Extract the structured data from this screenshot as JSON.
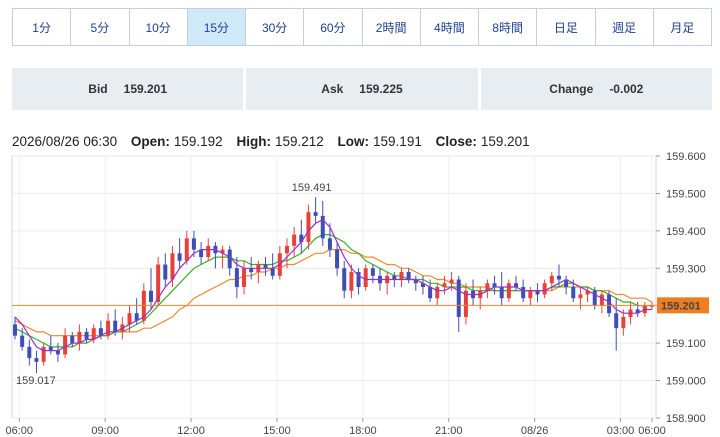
{
  "timeframes": [
    {
      "label": "1分",
      "active": false
    },
    {
      "label": "5分",
      "active": false
    },
    {
      "label": "10分",
      "active": false
    },
    {
      "label": "15分",
      "active": true
    },
    {
      "label": "30分",
      "active": false
    },
    {
      "label": "60分",
      "active": false
    },
    {
      "label": "2時間",
      "active": false
    },
    {
      "label": "4時間",
      "active": false
    },
    {
      "label": "8時間",
      "active": false
    },
    {
      "label": "日足",
      "active": false
    },
    {
      "label": "週足",
      "active": false
    },
    {
      "label": "月足",
      "active": false
    }
  ],
  "quote": {
    "bid_label": "Bid",
    "bid_value": "159.201",
    "ask_label": "Ask",
    "ask_value": "159.225",
    "change_label": "Change",
    "change_value": "-0.002"
  },
  "ohlc": {
    "datetime": "2026/08/26 06:30",
    "open_label": "Open:",
    "open": "159.192",
    "high_label": "High:",
    "high": "159.212",
    "low_label": "Low:",
    "low": "159.191",
    "close_label": "Close:",
    "close": "159.201"
  },
  "colors": {
    "up": "#e8413a",
    "down": "#3c4fb5",
    "ma_short": "#9b30c8",
    "ma_mid": "#3cae28",
    "ma_long": "#ef8a2e",
    "price_line": "#ef8a2e",
    "price_tag": "#ef7d22"
  },
  "chart_data": {
    "type": "candlestick",
    "title": "",
    "xlabel": "",
    "ylabel": "",
    "ylim": [
      158.9,
      159.6
    ],
    "y_ticks": [
      "158.900",
      "159.000",
      "159.100",
      "159.200",
      "159.300",
      "159.400",
      "159.500",
      "159.600"
    ],
    "x_ticks": [
      "06:00",
      "09:00",
      "12:00",
      "15:00",
      "18:00",
      "21:00",
      "08/26",
      "03:00",
      "06:00"
    ],
    "current_price": "159.201",
    "max_label": "159.491",
    "min_label": "159.017",
    "interval_minutes": 15,
    "candles": [
      [
        159.15,
        159.17,
        159.11,
        159.12
      ],
      [
        159.12,
        159.14,
        159.08,
        159.09
      ],
      [
        159.09,
        159.11,
        159.04,
        159.06
      ],
      [
        159.06,
        159.08,
        159.02,
        159.05
      ],
      [
        159.05,
        159.1,
        159.04,
        159.09
      ],
      [
        159.09,
        159.12,
        159.07,
        159.08
      ],
      [
        159.08,
        159.1,
        159.05,
        159.07
      ],
      [
        159.07,
        159.14,
        159.06,
        159.12
      ],
      [
        159.12,
        159.13,
        159.09,
        159.1
      ],
      [
        159.1,
        159.15,
        159.08,
        159.13
      ],
      [
        159.13,
        159.14,
        159.1,
        159.11
      ],
      [
        159.11,
        159.15,
        159.1,
        159.14
      ],
      [
        159.14,
        159.16,
        159.11,
        159.12
      ],
      [
        159.12,
        159.18,
        159.11,
        159.16
      ],
      [
        159.16,
        159.19,
        159.12,
        159.13
      ],
      [
        159.13,
        159.17,
        159.11,
        159.15
      ],
      [
        159.15,
        159.2,
        159.13,
        159.18
      ],
      [
        159.18,
        159.22,
        159.15,
        159.16
      ],
      [
        159.16,
        159.26,
        159.15,
        159.24
      ],
      [
        159.24,
        159.3,
        159.19,
        159.21
      ],
      [
        159.21,
        159.33,
        159.2,
        159.31
      ],
      [
        159.31,
        159.34,
        159.25,
        159.27
      ],
      [
        159.27,
        159.36,
        159.25,
        159.34
      ],
      [
        159.34,
        159.38,
        159.3,
        159.32
      ],
      [
        159.32,
        159.4,
        159.31,
        159.38
      ],
      [
        159.38,
        159.4,
        159.33,
        159.35
      ],
      [
        159.35,
        159.37,
        159.31,
        159.33
      ],
      [
        159.33,
        159.38,
        159.32,
        159.36
      ],
      [
        159.36,
        159.37,
        159.3,
        159.34
      ],
      [
        159.34,
        159.36,
        159.3,
        159.35
      ],
      [
        159.35,
        159.36,
        159.28,
        159.3
      ],
      [
        159.3,
        159.33,
        159.22,
        159.25
      ],
      [
        159.25,
        159.32,
        159.23,
        159.3
      ],
      [
        159.3,
        159.33,
        159.27,
        159.29
      ],
      [
        159.29,
        159.32,
        159.26,
        159.31
      ],
      [
        159.31,
        159.33,
        159.28,
        159.3
      ],
      [
        159.3,
        159.34,
        159.27,
        159.28
      ],
      [
        159.28,
        159.36,
        159.27,
        159.34
      ],
      [
        159.34,
        159.38,
        159.3,
        159.36
      ],
      [
        159.36,
        159.41,
        159.33,
        159.39
      ],
      [
        159.39,
        159.43,
        159.34,
        159.37
      ],
      [
        159.37,
        159.47,
        159.35,
        159.45
      ],
      [
        159.45,
        159.49,
        159.42,
        159.44
      ],
      [
        159.44,
        159.48,
        159.36,
        159.38
      ],
      [
        159.38,
        159.42,
        159.33,
        159.35
      ],
      [
        159.35,
        159.37,
        159.28,
        159.3
      ],
      [
        159.3,
        159.32,
        159.22,
        159.24
      ],
      [
        159.24,
        159.31,
        159.22,
        159.29
      ],
      [
        159.29,
        159.3,
        159.23,
        159.25
      ],
      [
        159.25,
        159.31,
        159.24,
        159.3
      ],
      [
        159.3,
        159.31,
        159.26,
        159.28
      ],
      [
        159.28,
        159.3,
        159.24,
        159.26
      ],
      [
        159.26,
        159.29,
        159.23,
        159.28
      ],
      [
        159.28,
        159.29,
        159.25,
        159.27
      ],
      [
        159.27,
        159.3,
        159.25,
        159.29
      ],
      [
        159.29,
        159.3,
        159.26,
        159.27
      ],
      [
        159.27,
        159.28,
        159.24,
        159.26
      ],
      [
        159.26,
        159.28,
        159.23,
        159.25
      ],
      [
        159.25,
        159.27,
        159.21,
        159.22
      ],
      [
        159.22,
        159.26,
        159.2,
        159.25
      ],
      [
        159.25,
        159.28,
        159.23,
        159.26
      ],
      [
        159.26,
        159.29,
        159.24,
        159.27
      ],
      [
        159.27,
        159.28,
        159.13,
        159.17
      ],
      [
        159.17,
        159.26,
        159.15,
        159.24
      ],
      [
        159.24,
        159.27,
        159.2,
        159.22
      ],
      [
        159.22,
        159.25,
        159.19,
        159.24
      ],
      [
        159.24,
        159.27,
        159.22,
        159.26
      ],
      [
        159.26,
        159.28,
        159.23,
        159.25
      ],
      [
        159.25,
        159.29,
        159.2,
        159.22
      ],
      [
        159.22,
        159.27,
        159.21,
        159.26
      ],
      [
        159.26,
        159.28,
        159.24,
        159.25
      ],
      [
        159.25,
        159.27,
        159.21,
        159.22
      ],
      [
        159.22,
        159.25,
        159.2,
        159.24
      ],
      [
        159.24,
        159.26,
        159.21,
        159.23
      ],
      [
        159.23,
        159.27,
        159.22,
        159.26
      ],
      [
        159.26,
        159.29,
        159.24,
        159.28
      ],
      [
        159.28,
        159.31,
        159.25,
        159.27
      ],
      [
        159.27,
        159.28,
        159.23,
        159.25
      ],
      [
        159.25,
        159.27,
        159.21,
        159.22
      ],
      [
        159.22,
        159.25,
        159.19,
        159.23
      ],
      [
        159.23,
        159.25,
        159.21,
        159.24
      ],
      [
        159.24,
        159.25,
        159.19,
        159.2
      ],
      [
        159.2,
        159.24,
        159.18,
        159.23
      ],
      [
        159.23,
        159.24,
        159.17,
        159.18
      ],
      [
        159.18,
        159.22,
        159.08,
        159.14
      ],
      [
        159.14,
        159.19,
        159.12,
        159.17
      ],
      [
        159.17,
        159.21,
        159.15,
        159.19
      ],
      [
        159.19,
        159.21,
        159.17,
        159.18
      ],
      [
        159.18,
        159.21,
        159.17,
        159.2
      ],
      [
        159.2,
        159.21,
        159.19,
        159.2
      ]
    ],
    "ma_short": [
      159.17,
      159.15,
      159.12,
      159.09,
      159.08,
      159.08,
      159.08,
      159.09,
      159.1,
      159.1,
      159.11,
      159.11,
      159.12,
      159.13,
      159.13,
      159.14,
      159.15,
      159.16,
      159.17,
      159.19,
      159.22,
      159.25,
      159.27,
      159.3,
      159.32,
      159.34,
      159.35,
      159.35,
      159.35,
      159.34,
      159.33,
      159.31,
      159.3,
      159.3,
      159.3,
      159.3,
      159.3,
      159.31,
      159.33,
      159.35,
      159.37,
      159.4,
      159.42,
      159.43,
      159.41,
      159.37,
      159.33,
      159.3,
      159.28,
      159.27,
      159.27,
      159.27,
      159.27,
      159.27,
      159.27,
      159.27,
      159.27,
      159.26,
      159.25,
      159.24,
      159.24,
      159.25,
      159.24,
      159.23,
      159.23,
      159.23,
      159.24,
      159.25,
      159.25,
      159.25,
      159.25,
      159.24,
      159.24,
      159.24,
      159.24,
      159.25,
      159.26,
      159.27,
      159.26,
      159.25,
      159.24,
      159.23,
      159.22,
      159.21,
      159.19,
      159.18,
      159.18,
      159.18,
      159.19,
      159.19
    ],
    "ma_mid": [
      159.14,
      159.13,
      159.12,
      159.11,
      159.1,
      159.09,
      159.09,
      159.09,
      159.09,
      159.1,
      159.1,
      159.11,
      159.12,
      159.12,
      159.13,
      159.13,
      159.14,
      159.15,
      159.16,
      159.18,
      159.2,
      159.22,
      159.24,
      159.26,
      159.28,
      159.3,
      159.31,
      159.32,
      159.33,
      159.33,
      159.33,
      159.32,
      159.32,
      159.31,
      159.31,
      159.31,
      159.31,
      159.32,
      159.32,
      159.33,
      159.34,
      159.36,
      159.38,
      159.39,
      159.39,
      159.38,
      159.37,
      159.35,
      159.34,
      159.32,
      159.31,
      159.3,
      159.29,
      159.28,
      159.28,
      159.27,
      159.27,
      159.27,
      159.26,
      159.26,
      159.25,
      159.25,
      159.25,
      159.25,
      159.24,
      159.24,
      159.24,
      159.24,
      159.24,
      159.24,
      159.24,
      159.24,
      159.24,
      159.24,
      159.24,
      159.25,
      159.25,
      159.26,
      159.26,
      159.25,
      159.25,
      159.24,
      159.24,
      159.23,
      159.22,
      159.21,
      159.21,
      159.2,
      159.2,
      159.2
    ],
    "ma_long": [
      159.16,
      159.15,
      159.14,
      159.13,
      159.13,
      159.12,
      159.12,
      159.12,
      159.12,
      159.12,
      159.12,
      159.12,
      159.12,
      159.12,
      159.13,
      159.13,
      159.13,
      159.13,
      159.14,
      159.14,
      159.15,
      159.16,
      159.17,
      159.19,
      159.2,
      159.22,
      159.23,
      159.24,
      159.25,
      159.26,
      159.27,
      159.27,
      159.28,
      159.28,
      159.29,
      159.29,
      159.3,
      159.3,
      159.31,
      159.31,
      159.32,
      159.33,
      159.34,
      159.34,
      159.35,
      159.35,
      159.35,
      159.34,
      159.34,
      159.33,
      159.33,
      159.32,
      159.31,
      159.31,
      159.3,
      159.3,
      159.29,
      159.28,
      159.28,
      159.27,
      159.27,
      159.26,
      159.26,
      159.25,
      159.25,
      159.25,
      159.25,
      159.24,
      159.24,
      159.24,
      159.24,
      159.24,
      159.24,
      159.24,
      159.24,
      159.24,
      159.25,
      159.25,
      159.25,
      159.25,
      159.25,
      159.24,
      159.24,
      159.24,
      159.23,
      159.23,
      159.22,
      159.22,
      159.22,
      159.21
    ]
  }
}
